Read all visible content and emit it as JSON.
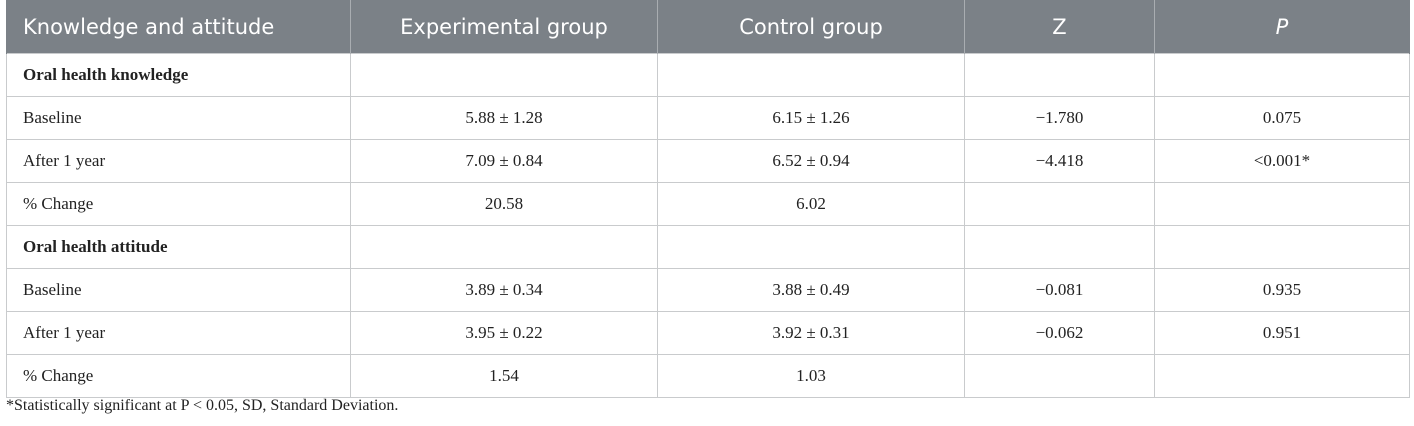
{
  "table": {
    "headers": [
      "Knowledge and attitude",
      "Experimental group",
      "Control group",
      "Z",
      "P"
    ],
    "rows": [
      {
        "type": "section",
        "cells": [
          "Oral health knowledge",
          "",
          "",
          "",
          ""
        ]
      },
      {
        "type": "data",
        "cells": [
          "Baseline",
          "5.88 ± 1.28",
          "6.15 ± 1.26",
          "−1.780",
          "0.075"
        ]
      },
      {
        "type": "data",
        "cells": [
          "After 1 year",
          "7.09 ± 0.84",
          "6.52 ± 0.94",
          "−4.418",
          "<0.001*"
        ]
      },
      {
        "type": "data",
        "cells": [
          "% Change",
          "20.58",
          "6.02",
          "",
          ""
        ]
      },
      {
        "type": "section",
        "cells": [
          "Oral health attitude",
          "",
          "",
          "",
          ""
        ]
      },
      {
        "type": "data",
        "cells": [
          "Baseline",
          "3.89 ± 0.34",
          "3.88 ± 0.49",
          "−0.081",
          "0.935"
        ]
      },
      {
        "type": "data",
        "cells": [
          "After 1 year",
          "3.95 ± 0.22",
          "3.92 ± 0.31",
          "−0.062",
          "0.951"
        ]
      },
      {
        "type": "data",
        "cells": [
          "% Change",
          "1.54",
          "1.03",
          "",
          ""
        ]
      }
    ]
  },
  "footnote": "*Statistically significant at P < 0.05, SD, Standard Deviation.",
  "colors": {
    "header_bg": "#7b8187",
    "header_text": "#ffffff",
    "grid": "#c9cbcd"
  }
}
